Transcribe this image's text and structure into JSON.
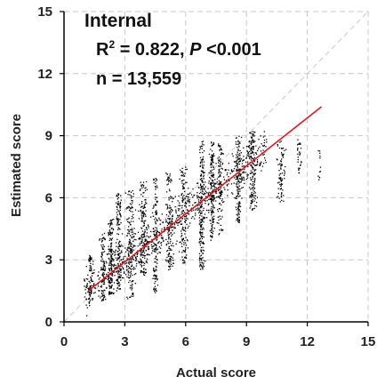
{
  "chart_data": {
    "type": "scatter",
    "annotations": {
      "title": "Internal",
      "r_prefix": "R",
      "r_sup": "2",
      "r_value": " = 0.822, ",
      "p_symbol": "P",
      "p_value": " <0.001",
      "n_text": "n = 13,559"
    },
    "xlabel": "Actual score",
    "ylabel": "Estimated score",
    "xlim": [
      0,
      15
    ],
    "ylim": [
      0,
      15
    ],
    "xticks": [
      "0",
      "3",
      "6",
      "9",
      "12",
      "15"
    ],
    "yticks": [
      "0",
      "3",
      "6",
      "9",
      "12",
      "15"
    ],
    "grid": true,
    "identity_line": true,
    "fit_line": {
      "x": [
        1.2,
        12.7
      ],
      "y": [
        1.5,
        10.4
      ]
    },
    "colors": {
      "points": "#000000",
      "fit": "#e3141b",
      "grid": "#c8c8c8",
      "identity": "#c8c8c8"
    },
    "clusters": [
      {
        "x": 1.3,
        "y_min": 1.2,
        "y_max": 3.2,
        "width": 0.12,
        "count": 60
      },
      {
        "x": 1.9,
        "y_min": 1.0,
        "y_max": 4.3,
        "width": 0.2,
        "count": 90
      },
      {
        "x": 2.3,
        "y_min": 1.3,
        "y_max": 5.0,
        "width": 0.2,
        "count": 160
      },
      {
        "x": 2.7,
        "y_min": 1.5,
        "y_max": 6.2,
        "width": 0.2,
        "count": 140
      },
      {
        "x": 3.3,
        "y_min": 1.1,
        "y_max": 6.4,
        "width": 0.3,
        "count": 160
      },
      {
        "x": 3.9,
        "y_min": 2.2,
        "y_max": 6.8,
        "width": 0.3,
        "count": 150
      },
      {
        "x": 4.5,
        "y_min": 1.4,
        "y_max": 7.0,
        "width": 0.2,
        "count": 130
      },
      {
        "x": 5.2,
        "y_min": 2.5,
        "y_max": 7.3,
        "width": 0.3,
        "count": 130
      },
      {
        "x": 5.9,
        "y_min": 2.8,
        "y_max": 7.5,
        "width": 0.3,
        "count": 120
      },
      {
        "x": 6.8,
        "y_min": 2.5,
        "y_max": 8.8,
        "width": 0.2,
        "count": 200
      },
      {
        "x": 7.3,
        "y_min": 3.8,
        "y_max": 8.8,
        "width": 0.2,
        "count": 150
      },
      {
        "x": 7.7,
        "y_min": 4.2,
        "y_max": 8.6,
        "width": 0.2,
        "count": 100
      },
      {
        "x": 8.6,
        "y_min": 4.8,
        "y_max": 9.0,
        "width": 0.2,
        "count": 140
      },
      {
        "x": 9.3,
        "y_min": 5.4,
        "y_max": 9.2,
        "width": 0.3,
        "count": 160
      },
      {
        "x": 10.7,
        "y_min": 5.8,
        "y_max": 8.8,
        "width": 0.3,
        "count": 80
      },
      {
        "x": 11.6,
        "y_min": 7.0,
        "y_max": 8.9,
        "width": 0.2,
        "count": 30
      },
      {
        "x": 12.6,
        "y_min": 6.7,
        "y_max": 8.5,
        "width": 0.1,
        "count": 12
      }
    ],
    "diffuse": {
      "x_range": [
        1.0,
        10.0
      ],
      "slope": 0.78,
      "intercept": 0.6,
      "spread": 1.4,
      "count": 800
    }
  }
}
